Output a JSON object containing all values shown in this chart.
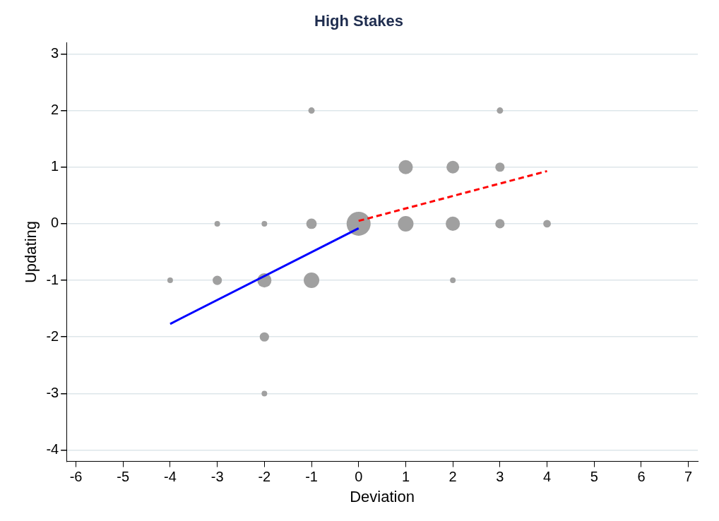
{
  "chart_data": {
    "type": "bubble",
    "title": "High Stakes",
    "xlabel": "Deviation",
    "ylabel": "Updating",
    "xlim": [
      -6.2,
      7.2
    ],
    "xticks": [
      -6,
      -5,
      -4,
      -3,
      -2,
      -1,
      0,
      1,
      2,
      3,
      4,
      5,
      6,
      7
    ],
    "ylim": [
      -4.2,
      3.2
    ],
    "yticks": [
      -4,
      -3,
      -2,
      -1,
      0,
      1,
      2,
      3
    ],
    "grid": "y",
    "legend": false,
    "series": [
      {
        "color": "#a0a0a0",
        "x": [
          0,
          1,
          2,
          3,
          -1,
          3,
          -3,
          -2,
          -1,
          1,
          2,
          3,
          4,
          -4,
          -3,
          -2,
          -1,
          2,
          -2,
          -2
        ],
        "values": [
          0,
          1,
          1,
          1,
          2,
          2,
          0,
          0,
          0,
          0,
          0,
          0,
          0,
          -1,
          -1,
          -1,
          -1,
          -1,
          -2,
          -3
        ],
        "sizes": [
          1,
          0.35,
          0.28,
          0.15,
          0.07,
          0.07,
          0.055,
          0.055,
          0.19,
          0.42,
          0.35,
          0.15,
          0.1,
          0.055,
          0.15,
          0.35,
          0.42,
          0.055,
          0.15,
          0.055
        ]
      },
      {
        "type": "line",
        "color": "#0000ff",
        "line_style": "solid",
        "x": [
          -4,
          0
        ],
        "values": [
          -1.77,
          -0.08
        ]
      },
      {
        "type": "line",
        "color": "#ff0000",
        "line_style": "dashed",
        "x": [
          0,
          4
        ],
        "values": [
          0.05,
          0.93
        ]
      }
    ]
  }
}
